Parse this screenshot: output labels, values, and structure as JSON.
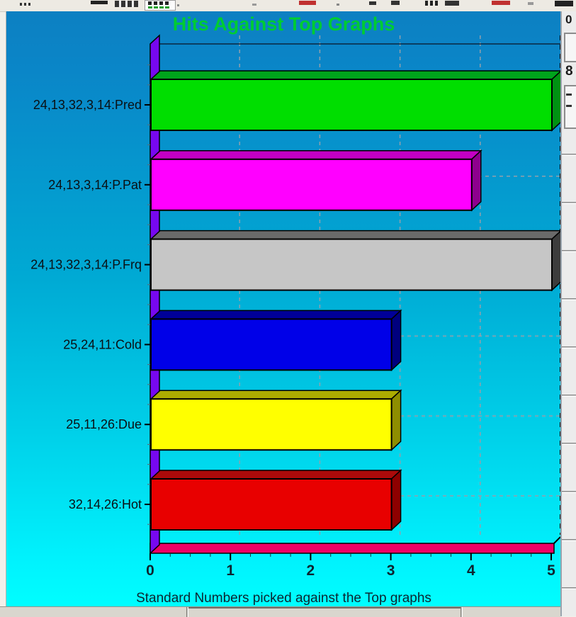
{
  "chart_data": {
    "type": "bar",
    "orientation": "horizontal",
    "title": "Hits Against Top Graphs",
    "title_color": "#00cc33",
    "xlabel": "Standard Numbers picked against the Top graphs",
    "categories": [
      "24,13,32,3,14:Pred",
      "24,13,3,14:P.Pat",
      "24,13,32,3,14:P.Frq",
      "25,24,11:Cold",
      "25,11,26:Due",
      "32,14,26:Hot"
    ],
    "values": [
      5,
      4,
      5,
      3,
      3,
      3
    ],
    "x_ticks": [
      "0",
      "1",
      "2",
      "3",
      "4",
      "5"
    ],
    "xlim": [
      0,
      5
    ],
    "grid": "dashed",
    "legend": false,
    "bar_colors": [
      {
        "front": "#00de00",
        "top": "#00a41c",
        "side": "#009212"
      },
      {
        "front": "#ff00ff",
        "top": "#c400c4",
        "side": "#8e008e"
      },
      {
        "front": "#c6c6c6",
        "top": "#6a6a6a",
        "side": "#3c3c3c"
      },
      {
        "front": "#0000e8",
        "top": "#000098",
        "side": "#00007e"
      },
      {
        "front": "#ffff00",
        "top": "#acac00",
        "side": "#8e8e00"
      },
      {
        "front": "#e80000",
        "top": "#ac0a0a",
        "side": "#8e0000"
      }
    ],
    "wall_color": "#7708f0",
    "floor_color": "#ee0066",
    "background_gradient": [
      "#0d80c2",
      "#00feff"
    ],
    "axis_text_color": "#0b2530",
    "category_text_color": "#0a1014"
  },
  "right_panel": {
    "top_fragment": "0",
    "mid_fragment": "8"
  }
}
